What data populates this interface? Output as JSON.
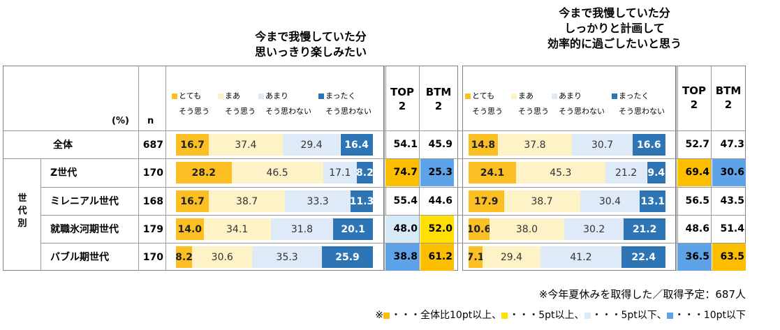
{
  "colors": {
    "very_agree": "#fbbf24",
    "somewhat_agree": "#fef3c7",
    "not_much": "#deeaf7",
    "not_at_all": "#2e75b6",
    "hi10": "#fbbf00",
    "hi5": "#ffe000",
    "lo5": "#d6eaf8",
    "lo10": "#5ea3e8"
  },
  "header": {
    "unit": "(%)",
    "n_label": "n",
    "top2": [
      "TOP",
      "2"
    ],
    "btm2": [
      "BTM",
      "2"
    ],
    "legend": [
      {
        "key": "very_agree",
        "line1": "とても",
        "line2": "そう思う"
      },
      {
        "key": "somewhat_agree",
        "line1": "まあ",
        "line2": "そう思う"
      },
      {
        "key": "not_much",
        "line1": "あまり",
        "line2": "そう思わない"
      },
      {
        "key": "not_at_all",
        "line1": "まったく",
        "line2": "そう思わない"
      }
    ]
  },
  "group_label": [
    "世",
    "代",
    "別"
  ],
  "rows": [
    {
      "label": "全体",
      "n": "687"
    },
    {
      "label": "Z世代",
      "n": "170"
    },
    {
      "label": "ミレニアル世代",
      "n": "168"
    },
    {
      "label": "就職氷河期世代",
      "n": "179"
    },
    {
      "label": "バブル期世代",
      "n": "170"
    }
  ],
  "chart_data": [
    {
      "type": "bar",
      "stacked": true,
      "orientation": "horizontal",
      "title": [
        "今まで我慢していた分",
        "思いっきり楽しみたい"
      ],
      "categories": [
        "全体",
        "Z世代",
        "ミレニアル世代",
        "就職氷河期世代",
        "バブル期世代"
      ],
      "series": [
        {
          "name": "とても そう思う",
          "values": [
            16.7,
            28.2,
            16.7,
            14.0,
            8.2
          ]
        },
        {
          "name": "まあ そう思う",
          "values": [
            37.4,
            46.5,
            38.7,
            34.1,
            30.6
          ]
        },
        {
          "name": "あまり そう思わない",
          "values": [
            29.4,
            17.1,
            33.3,
            31.8,
            35.3
          ]
        },
        {
          "name": "まったく そう思わない",
          "values": [
            16.4,
            8.2,
            11.3,
            20.1,
            25.9
          ]
        }
      ],
      "top2": [
        54.1,
        74.7,
        55.4,
        48.0,
        38.8
      ],
      "btm2": [
        45.9,
        25.3,
        44.6,
        52.0,
        61.2
      ],
      "top2_highlight": [
        "",
        "hi10",
        "",
        "lo5",
        "lo10"
      ],
      "btm2_highlight": [
        "",
        "lo10",
        "",
        "hi5",
        "hi10"
      ]
    },
    {
      "type": "bar",
      "stacked": true,
      "orientation": "horizontal",
      "title": [
        "今まで我慢していた分",
        "しっかりと計画して",
        "効率的に過ごしたいと思う"
      ],
      "categories": [
        "全体",
        "Z世代",
        "ミレニアル世代",
        "就職氷河期世代",
        "バブル期世代"
      ],
      "series": [
        {
          "name": "とても そう思う",
          "values": [
            14.8,
            24.1,
            17.9,
            10.6,
            7.1
          ]
        },
        {
          "name": "まあ そう思う",
          "values": [
            37.8,
            45.3,
            38.7,
            38.0,
            29.4
          ]
        },
        {
          "name": "あまり そう思わない",
          "values": [
            30.7,
            21.2,
            30.4,
            30.2,
            41.2
          ]
        },
        {
          "name": "まったく そう思わない",
          "values": [
            16.6,
            9.4,
            13.1,
            21.2,
            22.4
          ]
        }
      ],
      "top2": [
        52.7,
        69.4,
        56.5,
        48.6,
        36.5
      ],
      "btm2": [
        47.3,
        30.6,
        43.5,
        51.4,
        63.5
      ],
      "top2_highlight": [
        "",
        "hi10",
        "",
        "",
        "lo10"
      ],
      "btm2_highlight": [
        "",
        "lo10",
        "",
        "",
        "hi10"
      ]
    }
  ],
  "footnote": "※今年夏休みを取得した／取得予定：687人",
  "highlight_legend": {
    "prefix": "※",
    "items": [
      {
        "key": "hi10",
        "text": "・・・全体比10pt以上、"
      },
      {
        "key": "hi5",
        "text": "・・・5pt以上、"
      },
      {
        "key": "lo5",
        "text": "・・・5pt以下、"
      },
      {
        "key": "lo10",
        "text": "・・・10pt以下"
      }
    ]
  }
}
